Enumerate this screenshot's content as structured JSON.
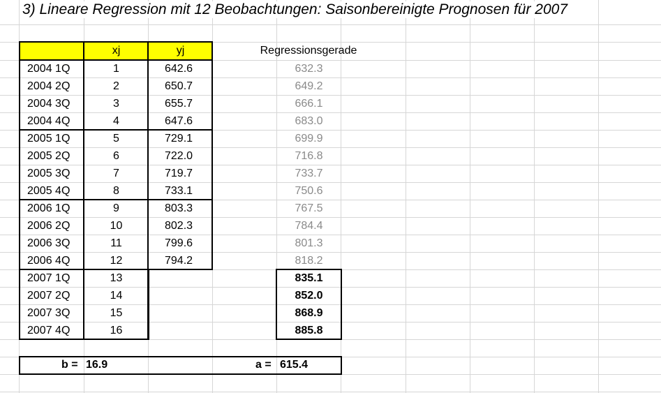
{
  "title": "3) Lineare Regression mit 12 Beobachtungen: Saisonbereinigte Prognosen für 2007",
  "headers": {
    "period": "",
    "xj": "xj",
    "yj": "yj",
    "reg": "Regressionsgerade"
  },
  "rows": [
    {
      "period": "2004 1Q",
      "x": "1",
      "y": "642.6",
      "reg": "632.3"
    },
    {
      "period": "2004 2Q",
      "x": "2",
      "y": "650.7",
      "reg": "649.2"
    },
    {
      "period": "2004 3Q",
      "x": "3",
      "y": "655.7",
      "reg": "666.1"
    },
    {
      "period": "2004 4Q",
      "x": "4",
      "y": "647.6",
      "reg": "683.0"
    },
    {
      "period": "2005 1Q",
      "x": "5",
      "y": "729.1",
      "reg": "699.9"
    },
    {
      "period": "2005 2Q",
      "x": "6",
      "y": "722.0",
      "reg": "716.8"
    },
    {
      "period": "2005 3Q",
      "x": "7",
      "y": "719.7",
      "reg": "733.7"
    },
    {
      "period": "2005 4Q",
      "x": "8",
      "y": "733.1",
      "reg": "750.6"
    },
    {
      "period": "2006 1Q",
      "x": "9",
      "y": "803.3",
      "reg": "767.5"
    },
    {
      "period": "2006 2Q",
      "x": "10",
      "y": "802.3",
      "reg": "784.4"
    },
    {
      "period": "2006 3Q",
      "x": "11",
      "y": "799.6",
      "reg": "801.3"
    },
    {
      "period": "2006 4Q",
      "x": "12",
      "y": "794.2",
      "reg": "818.2"
    }
  ],
  "forecast_rows": [
    {
      "period": "2007 1Q",
      "x": "13",
      "reg": "835.1"
    },
    {
      "period": "2007 2Q",
      "x": "14",
      "reg": "852.0"
    },
    {
      "period": "2007 3Q",
      "x": "15",
      "reg": "868.9"
    },
    {
      "period": "2007 4Q",
      "x": "16",
      "reg": "885.8"
    }
  ],
  "footer": {
    "b_label": "b =",
    "b_value": "16.9",
    "a_label": "a =",
    "a_value": "615.4"
  },
  "colors": {
    "header_fill": "#ffff00",
    "gridline": "#d6d6d6",
    "fitted_text": "#8a8a8a"
  }
}
